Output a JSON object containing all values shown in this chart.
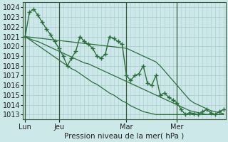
{
  "title": "Pression niveau de la mer( hPa )",
  "bg_color": "#cce8e8",
  "grid_color": "#aacccc",
  "line_color": "#2d6e3e",
  "ylim": [
    1012.5,
    1024.5
  ],
  "yticks": [
    1013,
    1014,
    1015,
    1016,
    1017,
    1018,
    1019,
    1020,
    1021,
    1022,
    1023,
    1024
  ],
  "xtick_labels": [
    "Lun",
    "Jeu",
    "Mar",
    "Mer"
  ],
  "xtick_positions": [
    0,
    8,
    24,
    36
  ],
  "vlines": [
    0,
    8,
    24,
    36
  ],
  "total_points": 48,
  "series_main": [
    1021,
    1023.5,
    1023.8,
    1023.2,
    1022.5,
    1021.8,
    1021.2,
    1020.5,
    1019.8,
    1019.0,
    1018.0,
    1018.8,
    1019.5,
    1021.0,
    1020.5,
    1020.2,
    1019.8,
    1019.0,
    1018.8,
    1019.2,
    1021.0,
    1020.8,
    1020.5,
    1020.2,
    1017.0,
    1016.5,
    1017.0,
    1017.2,
    1018.0,
    1016.2,
    1016.0,
    1017.0,
    1015.0,
    1015.2,
    1014.8,
    1014.5,
    1014.2,
    1013.5,
    1013.0,
    1013.2,
    1013.1,
    1013.0,
    1013.3,
    1013.5,
    1013.2,
    1013.0,
    1013.3,
    1013.5
  ],
  "series_s2": [
    1021,
    1020.7,
    1020.4,
    1020.1,
    1019.8,
    1019.5,
    1019.2,
    1018.9,
    1018.6,
    1018.3,
    1018.0,
    1017.7,
    1017.5,
    1017.2,
    1016.9,
    1016.6,
    1016.3,
    1016.1,
    1015.8,
    1015.5,
    1015.2,
    1015.0,
    1014.7,
    1014.4,
    1014.2,
    1013.9,
    1013.7,
    1013.5,
    1013.3,
    1013.2,
    1013.1,
    1013.0,
    1013.0,
    1013.0,
    1013.0,
    1013.0,
    1013.0,
    1013.0,
    1013.0,
    1013.0,
    1013.0,
    1013.0,
    1013.0,
    1013.0,
    1013.0,
    1013.0,
    1013.0,
    1013.0
  ],
  "series_s3": [
    1021,
    1020.8,
    1020.6,
    1020.5,
    1020.3,
    1020.1,
    1019.9,
    1019.7,
    1019.5,
    1019.3,
    1019.1,
    1018.9,
    1018.7,
    1018.5,
    1018.3,
    1018.2,
    1018.0,
    1017.8,
    1017.6,
    1017.4,
    1017.2,
    1017.0,
    1016.8,
    1016.6,
    1016.4,
    1016.2,
    1016.0,
    1015.8,
    1015.6,
    1015.4,
    1015.2,
    1015.0,
    1014.8,
    1014.6,
    1014.4,
    1014.2,
    1014.0,
    1013.8,
    1013.6,
    1013.4,
    1013.3,
    1013.2,
    1013.1,
    1013.0,
    1013.0,
    1013.0,
    1013.0,
    1013.0
  ],
  "series_s4": [
    1021,
    1020.95,
    1020.9,
    1020.85,
    1020.8,
    1020.75,
    1020.7,
    1020.65,
    1020.6,
    1020.55,
    1020.5,
    1020.45,
    1020.4,
    1020.35,
    1020.3,
    1020.25,
    1020.2,
    1020.15,
    1020.1,
    1020.05,
    1020.0,
    1019.95,
    1019.9,
    1019.85,
    1019.8,
    1019.6,
    1019.4,
    1019.2,
    1019.0,
    1018.8,
    1018.6,
    1018.4,
    1018.0,
    1017.5,
    1017.0,
    1016.5,
    1016.0,
    1015.5,
    1015.0,
    1014.5,
    1014.2,
    1014.0,
    1013.8,
    1013.6,
    1013.4,
    1013.3,
    1013.2,
    1013.1
  ]
}
